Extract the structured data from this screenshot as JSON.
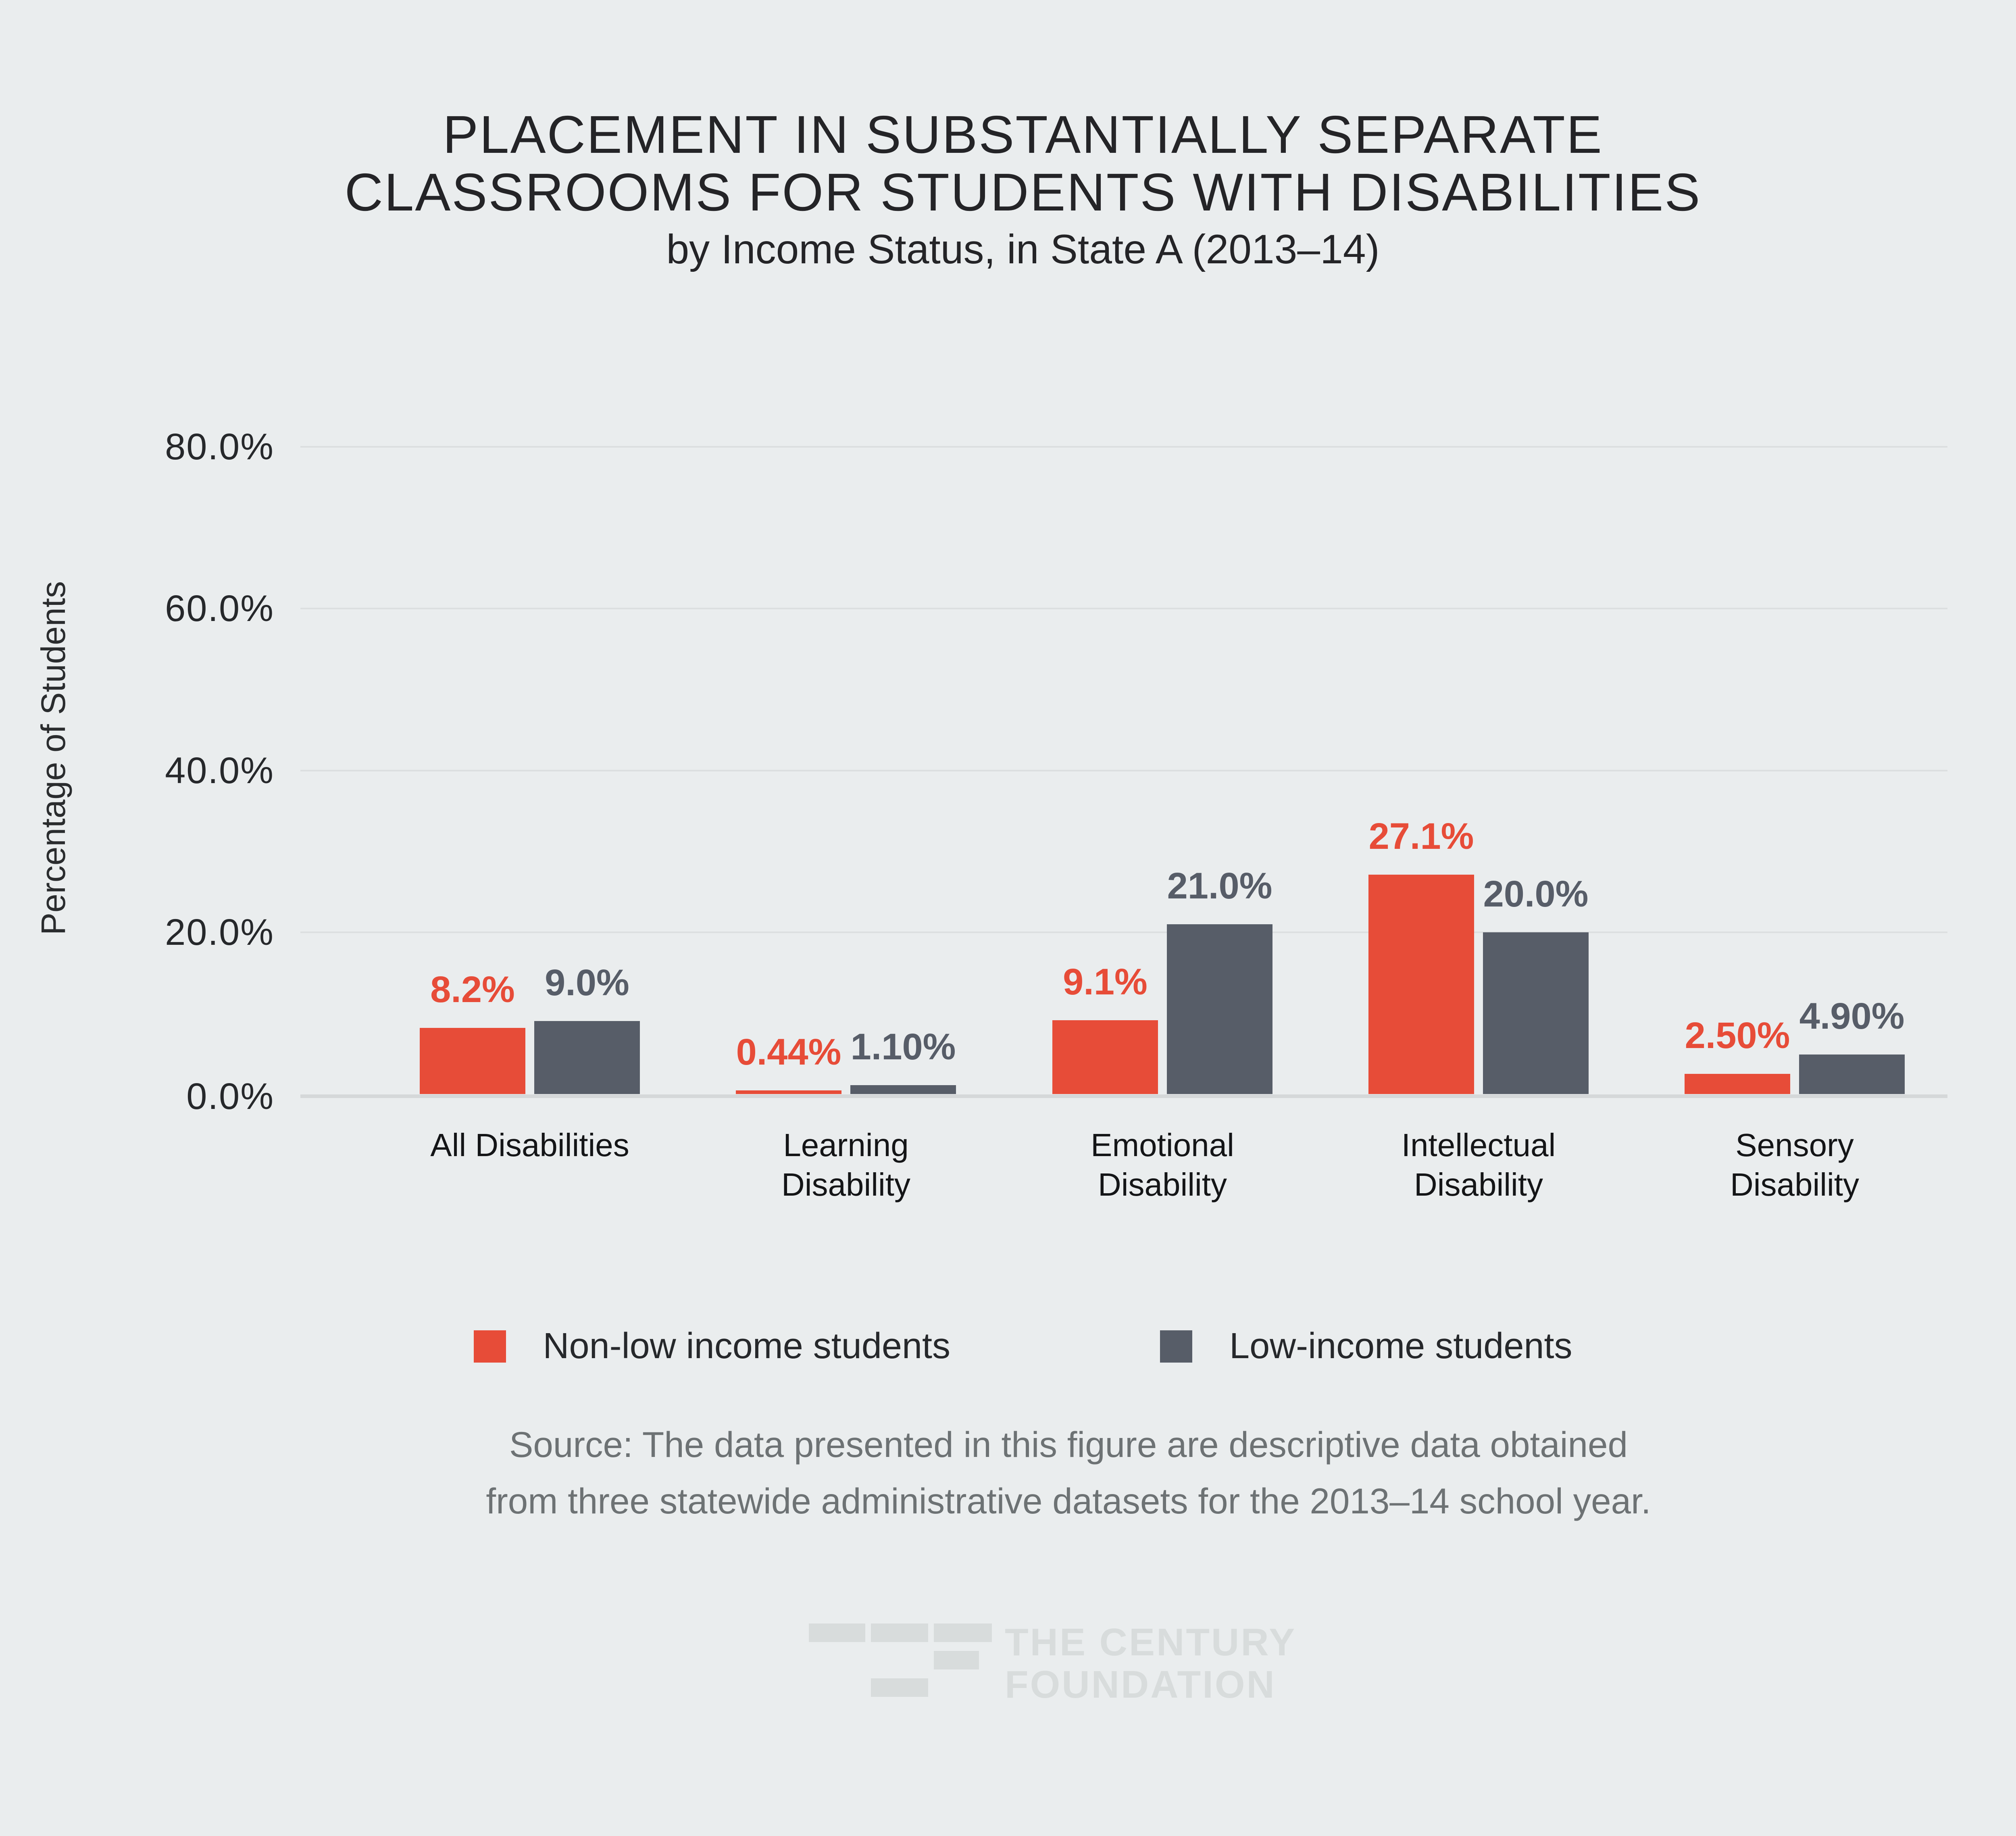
{
  "title": {
    "line1": "PLACEMENT IN SUBSTANTIALLY SEPARATE",
    "line2": "CLASSROOMS FOR STUDENTS WITH DISABILITIES",
    "subtitle": "by Income Status, in State A (2013–14)"
  },
  "y_axis": {
    "label": "Percentage of Students",
    "ticks": [
      "80.0%",
      "60.0%",
      "40.0%",
      "20.0%",
      "0.0%"
    ]
  },
  "chart_data": {
    "type": "bar",
    "title": "Placement in Substantially Separate Classrooms for Students with Disabilities by Income Status, in State A (2013–14)",
    "categories": [
      "All Disabilities",
      "Learning Disability",
      "Emotional Disability",
      "Intellectual Disability",
      "Sensory Disability"
    ],
    "category_lines": [
      [
        "All Disabilities"
      ],
      [
        "Learning",
        "Disability"
      ],
      [
        "Emotional",
        "Disability"
      ],
      [
        "Intellectual",
        "Disability"
      ],
      [
        "Sensory",
        "Disability"
      ]
    ],
    "series": [
      {
        "name": "Non-low income students",
        "color": "#e74c38",
        "values": [
          8.2,
          0.44,
          9.1,
          27.1,
          2.5
        ],
        "labels": [
          "8.2%",
          "0.44%",
          "9.1%",
          "27.1%",
          "2.50%"
        ]
      },
      {
        "name": "Low-income students",
        "color": "#575d68",
        "values": [
          9.0,
          1.1,
          21.0,
          20.0,
          4.9
        ],
        "labels": [
          "9.0%",
          "1.10%",
          "21.0%",
          "20.0%",
          "4.90%"
        ]
      }
    ],
    "xlabel": "",
    "ylabel": "Percentage of Students",
    "ylim": [
      0,
      80
    ],
    "yticks": [
      {
        "value": 80,
        "label": "80.0%"
      },
      {
        "value": 60,
        "label": "60.0%"
      },
      {
        "value": 40,
        "label": "40.0%"
      },
      {
        "value": 20,
        "label": "20.0%"
      },
      {
        "value": 0,
        "label": "0.0%"
      }
    ],
    "grid": true,
    "legend_position": "bottom"
  },
  "legend": {
    "items": [
      {
        "label": "Non-low income students",
        "color": "#e74c38"
      },
      {
        "label": "Low-income students",
        "color": "#575d68"
      }
    ]
  },
  "source": {
    "line1": "Source: The data presented in this figure are descriptive data obtained",
    "line2": "from three statewide administrative datasets for the 2013–14 school year."
  },
  "logo": {
    "line1": "THE CENTURY",
    "line2": "FOUNDATION"
  },
  "colors": {
    "background": "#eaedee",
    "red": "#e74c38",
    "slate": "#575d68",
    "gridline": "#dcdfe0",
    "axis_line": "#d5d8d9",
    "title_text": "#242427",
    "tick_text": "#26282b",
    "category_text": "#141517",
    "source_text": "#6d7274",
    "logo_gray": "#d8dcdc"
  }
}
